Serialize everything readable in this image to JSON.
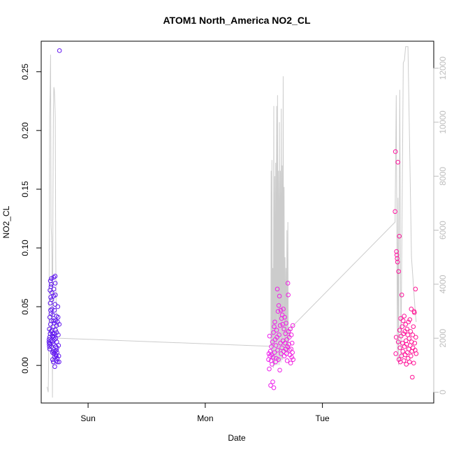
{
  "chart_data": {
    "type": "scatter",
    "title": "ATOM1 North_America NO2_CL",
    "xlabel": "Date",
    "ylabel": "NO2_CL",
    "y2label": "",
    "x_ticks": [
      {
        "label": "Sun",
        "value": 1.0
      },
      {
        "label": "Mon",
        "value": 2.0
      },
      {
        "label": "Tue",
        "value": 3.0
      }
    ],
    "xlim": [
      0.6,
      3.95
    ],
    "ylim": [
      -0.032,
      0.276
    ],
    "y_ticks": [
      0.0,
      0.05,
      0.1,
      0.15,
      0.2,
      0.25
    ],
    "y_tick_labels": [
      "0.00",
      "0.05",
      "0.10",
      "0.15",
      "0.20",
      "0.25"
    ],
    "y2lim": [
      -400,
      13000
    ],
    "y2_ticks": [
      0,
      2000,
      4000,
      6000,
      8000,
      10000,
      12000
    ],
    "y2_tick_labels": [
      "0",
      "2000",
      "4000",
      "6000",
      "8000",
      "10000",
      "12000"
    ],
    "colors": {
      "series_start": "#5b16f0",
      "series_mid": "#ee22ee",
      "series_end": "#ff1493",
      "line": "#cccccc",
      "right_axis": "#bdbdbd"
    },
    "series": [
      {
        "type": "scatter",
        "values": [
          [
            0.666,
            0.02
          ],
          [
            0.667,
            0.022
          ],
          [
            0.668,
            0.018
          ],
          [
            0.669,
            0.031
          ],
          [
            0.67,
            0.016
          ],
          [
            0.671,
            0.024
          ],
          [
            0.672,
            0.014
          ],
          [
            0.673,
            0.041
          ],
          [
            0.674,
            0.019
          ],
          [
            0.675,
            0.064
          ],
          [
            0.676,
            0.027
          ],
          [
            0.677,
            0.053
          ],
          [
            0.678,
            0.072
          ],
          [
            0.679,
            0.035
          ],
          [
            0.68,
            0.047
          ],
          [
            0.681,
            0.058
          ],
          [
            0.682,
            0.021
          ],
          [
            0.683,
            0.067
          ],
          [
            0.684,
            0.044
          ],
          [
            0.685,
            0.029
          ],
          [
            0.686,
            0.069
          ],
          [
            0.687,
            0.074
          ],
          [
            0.688,
            0.038
          ],
          [
            0.689,
            0.016
          ],
          [
            0.69,
            0.056
          ],
          [
            0.691,
            0.062
          ],
          [
            0.692,
            0.048
          ],
          [
            0.693,
            0.03
          ],
          [
            0.694,
            0.025
          ],
          [
            0.695,
            0.02
          ],
          [
            0.696,
            0.011
          ],
          [
            0.697,
            0.005
          ],
          [
            0.698,
            0.027
          ],
          [
            0.699,
            0.043
          ],
          [
            0.7,
            0.025
          ],
          [
            0.701,
            0.033
          ],
          [
            0.702,
            0.018
          ],
          [
            0.703,
            0.003
          ],
          [
            0.704,
            0.012
          ],
          [
            0.705,
            0.038
          ],
          [
            0.706,
            0.059
          ],
          [
            0.707,
            0.075
          ],
          [
            0.708,
            0.065
          ],
          [
            0.709,
            0.01
          ],
          [
            0.71,
            0.024
          ],
          [
            0.711,
            0.027
          ],
          [
            0.712,
            0.036
          ],
          [
            0.713,
            0.047
          ],
          [
            0.714,
            0.022
          ],
          [
            0.715,
            0.007
          ],
          [
            0.716,
            -0.001
          ],
          [
            0.717,
            0.012
          ],
          [
            0.718,
            0.052
          ],
          [
            0.719,
            0.076
          ],
          [
            0.72,
            0.07
          ],
          [
            0.721,
            0.06
          ],
          [
            0.722,
            0.038
          ],
          [
            0.723,
            0.03
          ],
          [
            0.724,
            0.023
          ],
          [
            0.725,
            0.016
          ],
          [
            0.726,
            0.009
          ],
          [
            0.727,
            0.004
          ],
          [
            0.728,
            0.008
          ],
          [
            0.729,
            0.013
          ],
          [
            0.73,
            0.042
          ],
          [
            0.731,
            0.034
          ],
          [
            0.732,
            0.028
          ],
          [
            0.733,
            0.02
          ],
          [
            0.734,
            0.015
          ],
          [
            0.735,
            0.011
          ],
          [
            0.736,
            0.006
          ],
          [
            0.738,
            0.003
          ],
          [
            0.74,
            0.037
          ],
          [
            0.742,
            0.05
          ],
          [
            0.744,
            0.041
          ],
          [
            0.746,
            0.026
          ],
          [
            0.748,
            0.017
          ],
          [
            0.75,
            0.008
          ],
          [
            0.752,
            0.003
          ],
          [
            0.754,
            0.035
          ],
          [
            0.756,
            0.268
          ]
        ]
      },
      {
        "type": "scatter",
        "values": [
          [
            2.54,
            0.005
          ],
          [
            2.543,
            0.01
          ],
          [
            2.546,
            -0.003
          ],
          [
            2.549,
            0.025
          ],
          [
            2.552,
            0.008
          ],
          [
            2.555,
            0.012
          ],
          [
            2.558,
            -0.017
          ],
          [
            2.561,
            0.004
          ],
          [
            2.564,
            0.016
          ],
          [
            2.567,
            0.009
          ],
          [
            2.57,
            0.001
          ],
          [
            2.573,
            0.02
          ],
          [
            2.576,
            -0.014
          ],
          [
            2.579,
            0.007
          ],
          [
            2.582,
            0.028
          ],
          [
            2.585,
            -0.019
          ],
          [
            2.588,
            0.033
          ],
          [
            2.591,
            0.011
          ],
          [
            2.594,
            0.037
          ],
          [
            2.597,
            0.022
          ],
          [
            2.6,
            0.003
          ],
          [
            2.603,
            0.017
          ],
          [
            2.606,
            0.006
          ],
          [
            2.609,
            0.03
          ],
          [
            2.612,
            0.024
          ],
          [
            2.615,
            0.065
          ],
          [
            2.618,
            0.013
          ],
          [
            2.621,
            0.046
          ],
          [
            2.624,
            0.005
          ],
          [
            2.627,
            0.051
          ],
          [
            2.63,
            0.026
          ],
          [
            2.633,
            0.059
          ],
          [
            2.636,
            -0.004
          ],
          [
            2.639,
            0.034
          ],
          [
            2.642,
            0.019
          ],
          [
            2.645,
            0.047
          ],
          [
            2.648,
            0.01
          ],
          [
            2.651,
            0.04
          ],
          [
            2.654,
            0.015
          ],
          [
            2.657,
            0.043
          ],
          [
            2.66,
            0.035
          ],
          [
            2.663,
            0.021
          ],
          [
            2.666,
            0.048
          ],
          [
            2.669,
            0.012
          ],
          [
            2.672,
            0.031
          ],
          [
            2.675,
            0.008
          ],
          [
            2.678,
            0.041
          ],
          [
            2.681,
            0.019
          ],
          [
            2.684,
            0.027
          ],
          [
            2.687,
            0.014
          ],
          [
            2.69,
            0.036
          ],
          [
            2.693,
            0.01
          ],
          [
            2.696,
            0.022
          ],
          [
            2.699,
            0.004
          ],
          [
            2.702,
            0.016
          ],
          [
            2.705,
            0.07
          ],
          [
            2.708,
            0.06
          ],
          [
            2.711,
            0.029
          ],
          [
            2.714,
            0.018
          ],
          [
            2.717,
            0.024
          ],
          [
            2.72,
            0.013
          ],
          [
            2.723,
            0.009
          ],
          [
            2.726,
            0.031
          ],
          [
            2.729,
            0.002
          ],
          [
            2.732,
            0.014
          ],
          [
            2.735,
            0.026
          ],
          [
            2.738,
            0.007
          ],
          [
            2.741,
            0.019
          ],
          [
            2.744,
            0.011
          ],
          [
            2.747,
            0.034
          ],
          [
            2.75,
            0.005
          ]
        ]
      },
      {
        "type": "scatter",
        "values": [
          [
            3.62,
            0.131
          ],
          [
            3.623,
            0.182
          ],
          [
            3.626,
            0.01
          ],
          [
            3.629,
            0.024
          ],
          [
            3.632,
            0.097
          ],
          [
            3.635,
            0.094
          ],
          [
            3.638,
            0.091
          ],
          [
            3.641,
            0.088
          ],
          [
            3.644,
            0.173
          ],
          [
            3.647,
            0.02
          ],
          [
            3.65,
            0.08
          ],
          [
            3.653,
            0.005
          ],
          [
            3.656,
            0.11
          ],
          [
            3.659,
            0.03
          ],
          [
            3.662,
            0.015
          ],
          [
            3.665,
            0.003
          ],
          [
            3.668,
            0.04
          ],
          [
            3.671,
            0.025
          ],
          [
            3.674,
            0.008
          ],
          [
            3.677,
            0.06
          ],
          [
            3.68,
            0.033
          ],
          [
            3.683,
            0.019
          ],
          [
            3.686,
            0.012
          ],
          [
            3.689,
            0.038
          ],
          [
            3.692,
            0.027
          ],
          [
            3.695,
            0.004
          ],
          [
            3.698,
            0.042
          ],
          [
            3.701,
            0.016
          ],
          [
            3.704,
            0.029
          ],
          [
            3.707,
            0.009
          ],
          [
            3.71,
            0.035
          ],
          [
            3.713,
            0.021
          ],
          [
            3.716,
            0.001
          ],
          [
            3.719,
            0.018
          ],
          [
            3.722,
            0.031
          ],
          [
            3.725,
            0.011
          ],
          [
            3.728,
            0.026
          ],
          [
            3.731,
            0.006
          ],
          [
            3.734,
            0.037
          ],
          [
            3.737,
            0.014
          ],
          [
            3.74,
            0.023
          ],
          [
            3.743,
            0.003
          ],
          [
            3.746,
            0.039
          ],
          [
            3.749,
            0.017
          ],
          [
            3.752,
            0.029
          ],
          [
            3.755,
            0.008
          ],
          [
            3.758,
            0.048
          ],
          [
            3.761,
            0.02
          ],
          [
            3.764,
            0.012
          ],
          [
            3.767,
            -0.01
          ],
          [
            3.77,
            0.026
          ],
          [
            3.773,
            0.015
          ],
          [
            3.776,
            0.033
          ],
          [
            3.779,
            0.002
          ],
          [
            3.782,
            0.046
          ],
          [
            3.785,
            0.045
          ],
          [
            3.788,
            0.019
          ],
          [
            3.791,
            0.013
          ],
          [
            3.794,
            0.065
          ],
          [
            3.797,
            0.024
          ],
          [
            3.8,
            0.01
          ]
        ]
      },
      {
        "type": "line",
        "axis": "right",
        "values": [
          [
            0.65,
            200
          ],
          [
            0.66,
            0
          ],
          [
            0.665,
            1800
          ],
          [
            0.67,
            6000
          ],
          [
            0.672,
            10200
          ],
          [
            0.674,
            10600
          ],
          [
            0.676,
            11000
          ],
          [
            0.68,
            12500
          ],
          [
            0.684,
            6200
          ],
          [
            0.688,
            5800
          ],
          [
            0.692,
            5000
          ],
          [
            0.696,
            -200
          ],
          [
            0.7,
            7000
          ],
          [
            0.704,
            10400
          ],
          [
            0.708,
            11300
          ],
          [
            0.712,
            11200
          ],
          [
            0.716,
            10800
          ],
          [
            0.72,
            10200
          ],
          [
            0.724,
            5000
          ],
          [
            0.728,
            3000
          ],
          [
            0.732,
            2100
          ],
          [
            0.74,
            2000
          ],
          [
            0.76,
            2000
          ],
          [
            2.56,
            1700
          ],
          [
            2.562,
            8200
          ],
          [
            2.566,
            1200
          ],
          [
            2.569,
            8600
          ],
          [
            2.573,
            1200
          ],
          [
            2.577,
            4600
          ],
          [
            2.581,
            900
          ],
          [
            2.585,
            10600
          ],
          [
            2.589,
            1000
          ],
          [
            2.593,
            8000
          ],
          [
            2.597,
            1000
          ],
          [
            2.601,
            8500
          ],
          [
            2.605,
            1200
          ],
          [
            2.609,
            10600
          ],
          [
            2.613,
            1000
          ],
          [
            2.617,
            11000
          ],
          [
            2.621,
            1100
          ],
          [
            2.625,
            8200
          ],
          [
            2.629,
            1000
          ],
          [
            2.633,
            10000
          ],
          [
            2.637,
            1200
          ],
          [
            2.641,
            8200
          ],
          [
            2.645,
            1100
          ],
          [
            2.649,
            10500
          ],
          [
            2.653,
            1200
          ],
          [
            2.657,
            8400
          ],
          [
            2.661,
            1200
          ],
          [
            2.665,
            11700
          ],
          [
            2.669,
            1500
          ],
          [
            2.673,
            7600
          ],
          [
            2.677,
            1400
          ],
          [
            2.681,
            5000
          ],
          [
            2.685,
            1500
          ],
          [
            2.689,
            4600
          ],
          [
            2.693,
            1400
          ],
          [
            2.697,
            6000
          ],
          [
            2.701,
            1500
          ],
          [
            2.705,
            6300
          ],
          [
            2.709,
            1400
          ],
          [
            2.713,
            2400
          ],
          [
            2.717,
            2000
          ],
          [
            2.735,
            2400
          ],
          [
            3.62,
            6300
          ],
          [
            3.63,
            11000
          ],
          [
            3.64,
            1200
          ],
          [
            3.645,
            7200
          ],
          [
            3.65,
            1000
          ],
          [
            3.66,
            11200
          ],
          [
            3.67,
            1200
          ],
          [
            3.69,
            12200
          ],
          [
            3.7,
            12300
          ],
          [
            3.71,
            12800
          ],
          [
            3.73,
            12800
          ],
          [
            3.76,
            5000
          ],
          [
            3.79,
            3100
          ],
          [
            3.8,
            2600
          ]
        ]
      }
    ]
  }
}
